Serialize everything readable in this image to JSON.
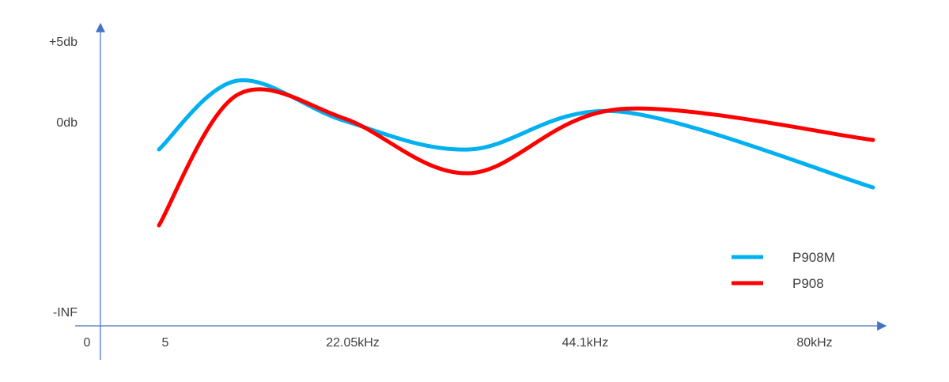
{
  "chart_data": {
    "type": "line",
    "title": "",
    "xlabel": "",
    "ylabel": "",
    "x_tick_labels": [
      "0",
      "5",
      "22.05kHz",
      "44.1kHz",
      "80kHz"
    ],
    "y_tick_labels": [
      "+5db",
      "0db",
      "-INF"
    ],
    "legend_position": "bottom-right",
    "grid": false,
    "series": [
      {
        "name": "P908M",
        "color": "#00B0F0",
        "points": [
          {
            "x": "5",
            "y": -1.2
          },
          {
            "x": "",
            "y": 1.7
          },
          {
            "x": "22.05kHz",
            "y": 0.0
          },
          {
            "x": "",
            "y": -1.2
          },
          {
            "x": "44.1kHz",
            "y": 0.4
          },
          {
            "x": "80kHz",
            "y": -2.8
          }
        ]
      },
      {
        "name": "P908",
        "color": "#FF0000",
        "points": [
          {
            "x": "5",
            "y": -4.4
          },
          {
            "x": "",
            "y": 1.1
          },
          {
            "x": "22.05kHz",
            "y": 0.1
          },
          {
            "x": "",
            "y": -2.2
          },
          {
            "x": "44.1kHz",
            "y": 0.5
          },
          {
            "x": "80kHz",
            "y": -0.8
          }
        ]
      }
    ]
  }
}
